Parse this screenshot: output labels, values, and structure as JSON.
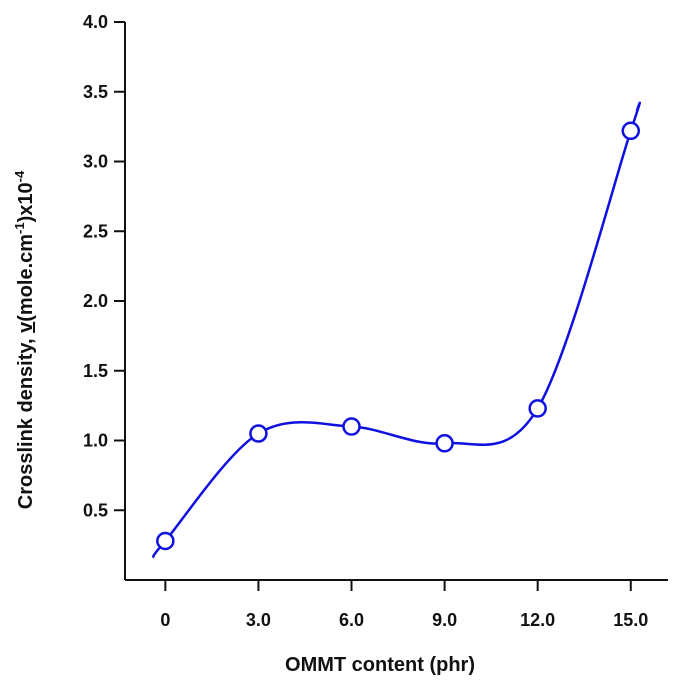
{
  "chart_data": {
    "type": "line",
    "x": [
      0,
      3,
      6,
      9,
      12,
      15
    ],
    "series": [
      {
        "values": [
          0.28,
          1.05,
          1.1,
          0.98,
          1.23,
          3.22
        ]
      }
    ],
    "xticks": [
      "0",
      "3.0",
      "6.0",
      "9.0",
      "12.0",
      "15.0"
    ],
    "yticks": [
      "0.5",
      "1.0",
      "1.5",
      "2.0",
      "2.5",
      "3.0",
      "3.5",
      "4.0"
    ],
    "xlabel": "OMMT content (phr)",
    "ylabel": {
      "prefix": "Crosslink density,  ",
      "symbol": "v",
      "unit": "(mole.cm",
      "unit_exp": "-1",
      "suffix": ")x10",
      "suffix_exp": "-4"
    },
    "xlim": [
      -1.3,
      16.2
    ],
    "ylim": [
      0.0,
      4.0
    ],
    "grid": false,
    "legend": "none",
    "smooth_curve": true,
    "curve_extends_from": [
      -0.4,
      0.16
    ],
    "curve_extends_to": [
      15.2,
      3.37
    ],
    "colors": {
      "series": "#1010e0",
      "axis": "#111111"
    }
  }
}
